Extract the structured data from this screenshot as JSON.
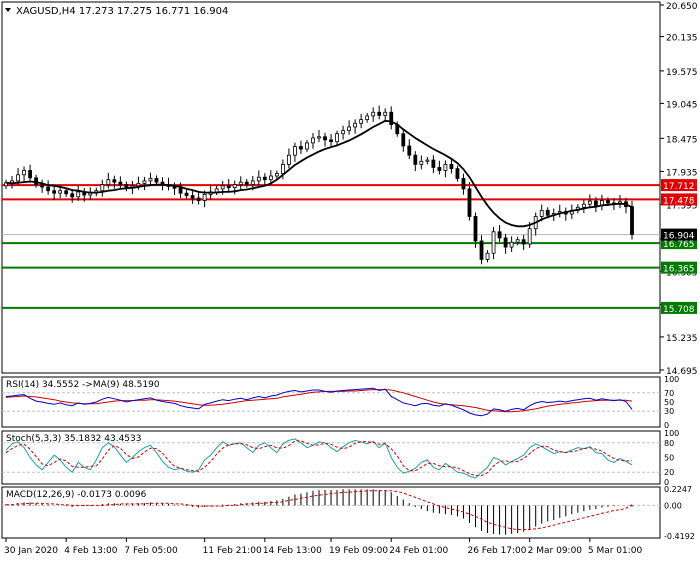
{
  "chart_data": {
    "type": "candlestick",
    "symbol": "XAGUSD,H4",
    "header_values": [
      "17.273",
      "17.275",
      "16.771",
      "16.904"
    ],
    "price_axis": {
      "ylim": [
        14.695,
        20.65
      ],
      "ticks": [
        "20.650",
        "20.135",
        "19.575",
        "19.045",
        "18.475",
        "17.935",
        "17.395",
        "16.835",
        "16.305",
        "15.765",
        "15.235",
        "14.695"
      ]
    },
    "x_axis": {
      "labels": [
        "30 Jan 2020",
        "4 Feb 13:00",
        "7 Feb 05:00",
        "11 Feb 21:00",
        "14 Feb 13:00",
        "19 Feb 09:00",
        "24 Feb 01:00",
        "26 Feb 17:00",
        "2 Mar 09:00",
        "5 Mar 01:00"
      ],
      "label_index": [
        0,
        10,
        20,
        33,
        43,
        54,
        64,
        77,
        87,
        97
      ]
    },
    "horizontal_levels": [
      {
        "value": 17.712,
        "label": "17.712",
        "color": "#e00000"
      },
      {
        "value": 17.478,
        "label": "17.478",
        "color": "#e00000"
      },
      {
        "value": 16.765,
        "label": "16.765",
        "color": "#007a00"
      },
      {
        "value": 16.365,
        "label": "16.365",
        "color": "#007a00"
      },
      {
        "value": 15.708,
        "label": "15.708",
        "color": "#007a00"
      }
    ],
    "current_price": {
      "value": 16.904,
      "label": "16.904"
    },
    "closes": [
      17.75,
      17.78,
      17.88,
      17.95,
      17.83,
      17.72,
      17.68,
      17.62,
      17.58,
      17.62,
      17.57,
      17.52,
      17.6,
      17.55,
      17.58,
      17.62,
      17.72,
      17.8,
      17.76,
      17.72,
      17.66,
      17.7,
      17.74,
      17.78,
      17.82,
      17.76,
      17.72,
      17.69,
      17.66,
      17.58,
      17.54,
      17.5,
      17.46,
      17.56,
      17.6,
      17.65,
      17.7,
      17.67,
      17.72,
      17.76,
      17.72,
      17.78,
      17.84,
      17.8,
      17.86,
      17.9,
      18.05,
      18.2,
      18.34,
      18.3,
      18.4,
      18.48,
      18.5,
      18.45,
      18.42,
      18.55,
      18.6,
      18.66,
      18.72,
      18.78,
      18.84,
      18.9,
      18.85,
      18.9,
      18.7,
      18.55,
      18.35,
      18.2,
      18.05,
      18.1,
      18.12,
      18.0,
      17.95,
      18.05,
      17.98,
      17.82,
      17.65,
      17.2,
      16.8,
      16.5,
      16.6,
      16.95,
      16.85,
      16.7,
      16.78,
      16.82,
      16.75,
      17.0,
      17.2,
      17.3,
      17.22,
      17.25,
      17.28,
      17.24,
      17.3,
      17.35,
      17.4,
      17.45,
      17.38,
      17.46,
      17.42,
      17.4,
      17.44,
      17.36,
      16.904
    ],
    "ma": {
      "start": 0,
      "values": [
        17.75,
        17.74,
        17.75,
        17.76,
        17.77,
        17.76,
        17.74,
        17.71,
        17.7,
        17.68,
        17.66,
        17.63,
        17.62,
        17.6,
        17.59,
        17.59,
        17.6,
        17.62,
        17.63,
        17.65,
        17.66,
        17.67,
        17.68,
        17.7,
        17.71,
        17.72,
        17.72,
        17.71,
        17.7,
        17.68,
        17.65,
        17.63,
        17.6,
        17.59,
        17.59,
        17.59,
        17.6,
        17.6,
        17.61,
        17.63,
        17.64,
        17.66,
        17.68,
        17.7,
        17.74,
        17.8,
        17.88,
        17.96,
        18.04,
        18.1,
        18.16,
        18.21,
        18.26,
        18.3,
        18.33,
        18.36,
        18.4,
        18.44,
        18.49,
        18.54,
        18.6,
        18.66,
        18.71,
        18.76,
        18.75,
        18.7,
        18.62,
        18.55,
        18.48,
        18.42,
        18.36,
        18.3,
        18.25,
        18.2,
        18.14,
        18.07,
        17.97,
        17.84,
        17.68,
        17.52,
        17.38,
        17.26,
        17.17,
        17.1,
        17.06,
        17.04,
        17.04,
        17.06,
        17.1,
        17.15,
        17.19,
        17.22,
        17.25,
        17.27,
        17.29,
        17.31,
        17.33,
        17.35,
        17.36,
        17.38,
        17.39,
        17.4,
        17.41,
        17.4,
        17.35
      ]
    },
    "rsi": {
      "label": "RSI(14) 34.5552 ->MA(9) 48.5190",
      "scale": [
        "100",
        "70",
        "50",
        "30",
        "0"
      ],
      "ylim": [
        0,
        100
      ],
      "levels": [
        70,
        30
      ],
      "main": [
        62,
        63,
        65,
        66,
        58,
        52,
        50,
        47,
        45,
        48,
        44,
        42,
        48,
        45,
        47,
        50,
        56,
        60,
        57,
        54,
        50,
        53,
        55,
        57,
        59,
        54,
        51,
        49,
        47,
        42,
        39,
        37,
        35,
        45,
        48,
        52,
        55,
        53,
        56,
        58,
        55,
        59,
        62,
        59,
        63,
        65,
        70,
        73,
        75,
        72,
        74,
        76,
        76,
        73,
        71,
        74,
        75,
        76,
        77,
        78,
        79,
        80,
        75,
        78,
        62,
        55,
        48,
        45,
        42,
        46,
        47,
        43,
        41,
        46,
        43,
        38,
        33,
        26,
        22,
        20,
        24,
        35,
        33,
        30,
        34,
        36,
        33,
        42,
        48,
        51,
        49,
        50,
        52,
        50,
        53,
        55,
        57,
        58,
        54,
        57,
        55,
        53,
        55,
        51,
        34
      ],
      "signal": [
        60,
        61,
        62,
        63,
        62,
        61,
        59,
        57,
        55,
        52,
        50,
        48,
        47,
        46,
        46,
        46,
        48,
        50,
        52,
        53,
        53,
        53,
        54,
        54,
        55,
        55,
        54,
        53,
        52,
        50,
        48,
        46,
        44,
        43,
        43,
        44,
        45,
        47,
        49,
        51,
        53,
        54,
        55,
        56,
        57,
        58,
        61,
        63,
        65,
        67,
        69,
        71,
        72,
        73,
        73,
        73,
        73,
        74,
        74,
        75,
        76,
        77,
        77,
        77,
        76,
        73,
        70,
        66,
        62,
        58,
        54,
        50,
        47,
        45,
        44,
        43,
        42,
        40,
        38,
        35,
        32,
        31,
        30,
        29,
        29,
        30,
        31,
        33,
        35,
        38,
        41,
        43,
        45,
        46,
        48,
        49,
        51,
        52,
        53,
        54,
        54,
        54,
        54,
        54,
        52
      ]
    },
    "stoch": {
      "label": "Stoch(5,3,3) 35.1832 43.4533",
      "scale": [
        "100",
        "80",
        "50",
        "20",
        "0"
      ],
      "ylim": [
        0,
        100
      ],
      "levels": [
        80,
        20
      ],
      "main": [
        65,
        78,
        82,
        70,
        50,
        35,
        25,
        40,
        55,
        45,
        30,
        20,
        40,
        30,
        25,
        45,
        70,
        80,
        72,
        55,
        40,
        50,
        62,
        70,
        75,
        60,
        42,
        30,
        25,
        28,
        22,
        20,
        25,
        45,
        55,
        70,
        82,
        75,
        78,
        80,
        70,
        60,
        75,
        80,
        70,
        60,
        78,
        85,
        88,
        80,
        70,
        75,
        82,
        80,
        70,
        62,
        72,
        80,
        85,
        82,
        78,
        83,
        70,
        80,
        50,
        30,
        18,
        22,
        28,
        40,
        45,
        30,
        25,
        38,
        30,
        20,
        18,
        12,
        8,
        20,
        30,
        50,
        45,
        35,
        42,
        48,
        55,
        70,
        78,
        72,
        65,
        58,
        62,
        60,
        65,
        70,
        68,
        72,
        60,
        58,
        45,
        40,
        48,
        42,
        35
      ],
      "signal": [
        60,
        68,
        75,
        77,
        67,
        52,
        37,
        33,
        40,
        47,
        43,
        32,
        30,
        30,
        32,
        33,
        47,
        65,
        74,
        69,
        56,
        48,
        51,
        61,
        69,
        68,
        59,
        44,
        32,
        28,
        25,
        23,
        22,
        30,
        42,
        57,
        69,
        76,
        78,
        78,
        76,
        70,
        68,
        72,
        75,
        70,
        69,
        74,
        84,
        84,
        79,
        75,
        76,
        79,
        77,
        71,
        68,
        71,
        79,
        82,
        82,
        81,
        77,
        78,
        68,
        53,
        33,
        23,
        23,
        30,
        38,
        38,
        33,
        31,
        31,
        29,
        23,
        17,
        13,
        13,
        19,
        33,
        42,
        43,
        41,
        42,
        48,
        58,
        68,
        73,
        72,
        65,
        62,
        60,
        62,
        64,
        68,
        70,
        67,
        63,
        55,
        48,
        44,
        43,
        43
      ]
    },
    "macd": {
      "label": "MACD(12,26,9) -0.0173 0.0096",
      "scale": [
        "0.2247",
        "0.00",
        "-0.4192"
      ],
      "ylim": [
        -0.4192,
        0.2247
      ],
      "hist": [
        0.02,
        0.02,
        0.03,
        0.04,
        0.04,
        0.03,
        0.02,
        0.01,
        0.0,
        0.0,
        -0.01,
        -0.02,
        -0.01,
        -0.01,
        -0.01,
        0.0,
        0.02,
        0.03,
        0.03,
        0.02,
        0.02,
        0.02,
        0.03,
        0.03,
        0.04,
        0.03,
        0.03,
        0.02,
        0.01,
        0.0,
        -0.01,
        -0.02,
        -0.03,
        -0.02,
        -0.01,
        0.0,
        0.01,
        0.01,
        0.02,
        0.03,
        0.03,
        0.04,
        0.05,
        0.05,
        0.06,
        0.07,
        0.09,
        0.12,
        0.15,
        0.16,
        0.18,
        0.2,
        0.21,
        0.21,
        0.21,
        0.21,
        0.22,
        0.22,
        0.22,
        0.22,
        0.22,
        0.22,
        0.21,
        0.21,
        0.18,
        0.13,
        0.08,
        0.03,
        -0.02,
        -0.05,
        -0.08,
        -0.1,
        -0.11,
        -0.12,
        -0.13,
        -0.15,
        -0.18,
        -0.24,
        -0.3,
        -0.35,
        -0.38,
        -0.39,
        -0.4,
        -0.4,
        -0.39,
        -0.38,
        -0.36,
        -0.33,
        -0.29,
        -0.25,
        -0.22,
        -0.2,
        -0.17,
        -0.15,
        -0.12,
        -0.1,
        -0.08,
        -0.06,
        -0.05,
        -0.03,
        -0.02,
        -0.01,
        0.0,
        0.0,
        -0.02
      ],
      "signal": [
        0.01,
        0.01,
        0.02,
        0.02,
        0.03,
        0.03,
        0.03,
        0.02,
        0.02,
        0.01,
        0.01,
        0.0,
        0.0,
        0.0,
        0.0,
        0.0,
        0.0,
        0.01,
        0.01,
        0.02,
        0.02,
        0.02,
        0.02,
        0.02,
        0.03,
        0.03,
        0.03,
        0.03,
        0.02,
        0.02,
        0.01,
        0.0,
        -0.01,
        -0.01,
        -0.01,
        -0.01,
        -0.01,
        0.0,
        0.0,
        0.01,
        0.02,
        0.02,
        0.03,
        0.03,
        0.04,
        0.04,
        0.05,
        0.07,
        0.08,
        0.1,
        0.11,
        0.13,
        0.14,
        0.15,
        0.16,
        0.17,
        0.18,
        0.18,
        0.19,
        0.19,
        0.2,
        0.2,
        0.2,
        0.2,
        0.2,
        0.19,
        0.17,
        0.14,
        0.11,
        0.08,
        0.05,
        0.02,
        -0.01,
        -0.03,
        -0.05,
        -0.07,
        -0.09,
        -0.12,
        -0.15,
        -0.19,
        -0.23,
        -0.26,
        -0.28,
        -0.3,
        -0.32,
        -0.33,
        -0.33,
        -0.33,
        -0.32,
        -0.31,
        -0.29,
        -0.27,
        -0.25,
        -0.23,
        -0.21,
        -0.19,
        -0.17,
        -0.15,
        -0.13,
        -0.11,
        -0.09,
        -0.07,
        -0.06,
        -0.04,
        0.01
      ]
    }
  }
}
